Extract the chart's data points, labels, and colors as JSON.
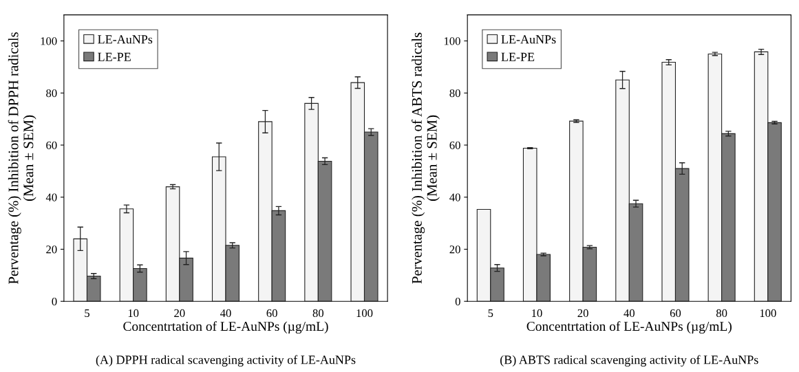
{
  "chart_data": [
    {
      "type": "bar",
      "xlabel": "Concentrtation of LE-AuNPs (µg/mL)",
      "ylabel": "Perventage (%) Inhibition of DPPH radicals\n(Mean ± SEM)",
      "categories": [
        "5",
        "10",
        "20",
        "40",
        "60",
        "80",
        "100"
      ],
      "ylim": [
        0,
        110
      ],
      "yticks": [
        0,
        20,
        40,
        60,
        80,
        100
      ],
      "legend": "top left",
      "grid": false,
      "annotations": [
        "(A) DPPH radical scavenging activity of LE-AuNPs"
      ],
      "series": [
        {
          "name": "LE-AuNPs",
          "color": "#f4f4f4",
          "values": [
            24,
            35.5,
            44,
            55.5,
            69,
            76,
            84
          ],
          "errors": [
            4.5,
            1.5,
            0.8,
            5.3,
            4.3,
            2.3,
            2.2
          ]
        },
        {
          "name": "LE-PE",
          "color": "#7a7a7a",
          "values": [
            9.7,
            12.6,
            16.6,
            21.5,
            34.8,
            53.8,
            65
          ],
          "errors": [
            1,
            1.4,
            2.5,
            1,
            1.6,
            1.3,
            1.3
          ]
        }
      ]
    },
    {
      "type": "bar",
      "xlabel": "Concentrtation of LE-AuNPs (µg/mL)",
      "ylabel": "Perventage (%) Inhibition of ABTS radicals\n(Mean ± SEM)",
      "categories": [
        "5",
        "10",
        "20",
        "40",
        "60",
        "80",
        "100"
      ],
      "ylim": [
        0,
        110
      ],
      "yticks": [
        0,
        20,
        40,
        60,
        80,
        100
      ],
      "legend": "top left",
      "grid": false,
      "annotations": [
        "(B) ABTS radical scavenging activity of LE-AuNPs"
      ],
      "series": [
        {
          "name": "LE-AuNPs",
          "color": "#f4f4f4",
          "values": [
            35.3,
            58.8,
            69.2,
            85,
            91.8,
            95,
            95.8
          ],
          "errors": [
            null,
            0.2,
            0.5,
            3.3,
            1,
            0.6,
            1
          ]
        },
        {
          "name": "LE-PE",
          "color": "#7a7a7a",
          "values": [
            12.8,
            18,
            20.8,
            37.5,
            51,
            64.4,
            68.6
          ],
          "errors": [
            1.3,
            0.5,
            0.6,
            1.3,
            2.2,
            0.9,
            0.5
          ]
        }
      ]
    }
  ]
}
